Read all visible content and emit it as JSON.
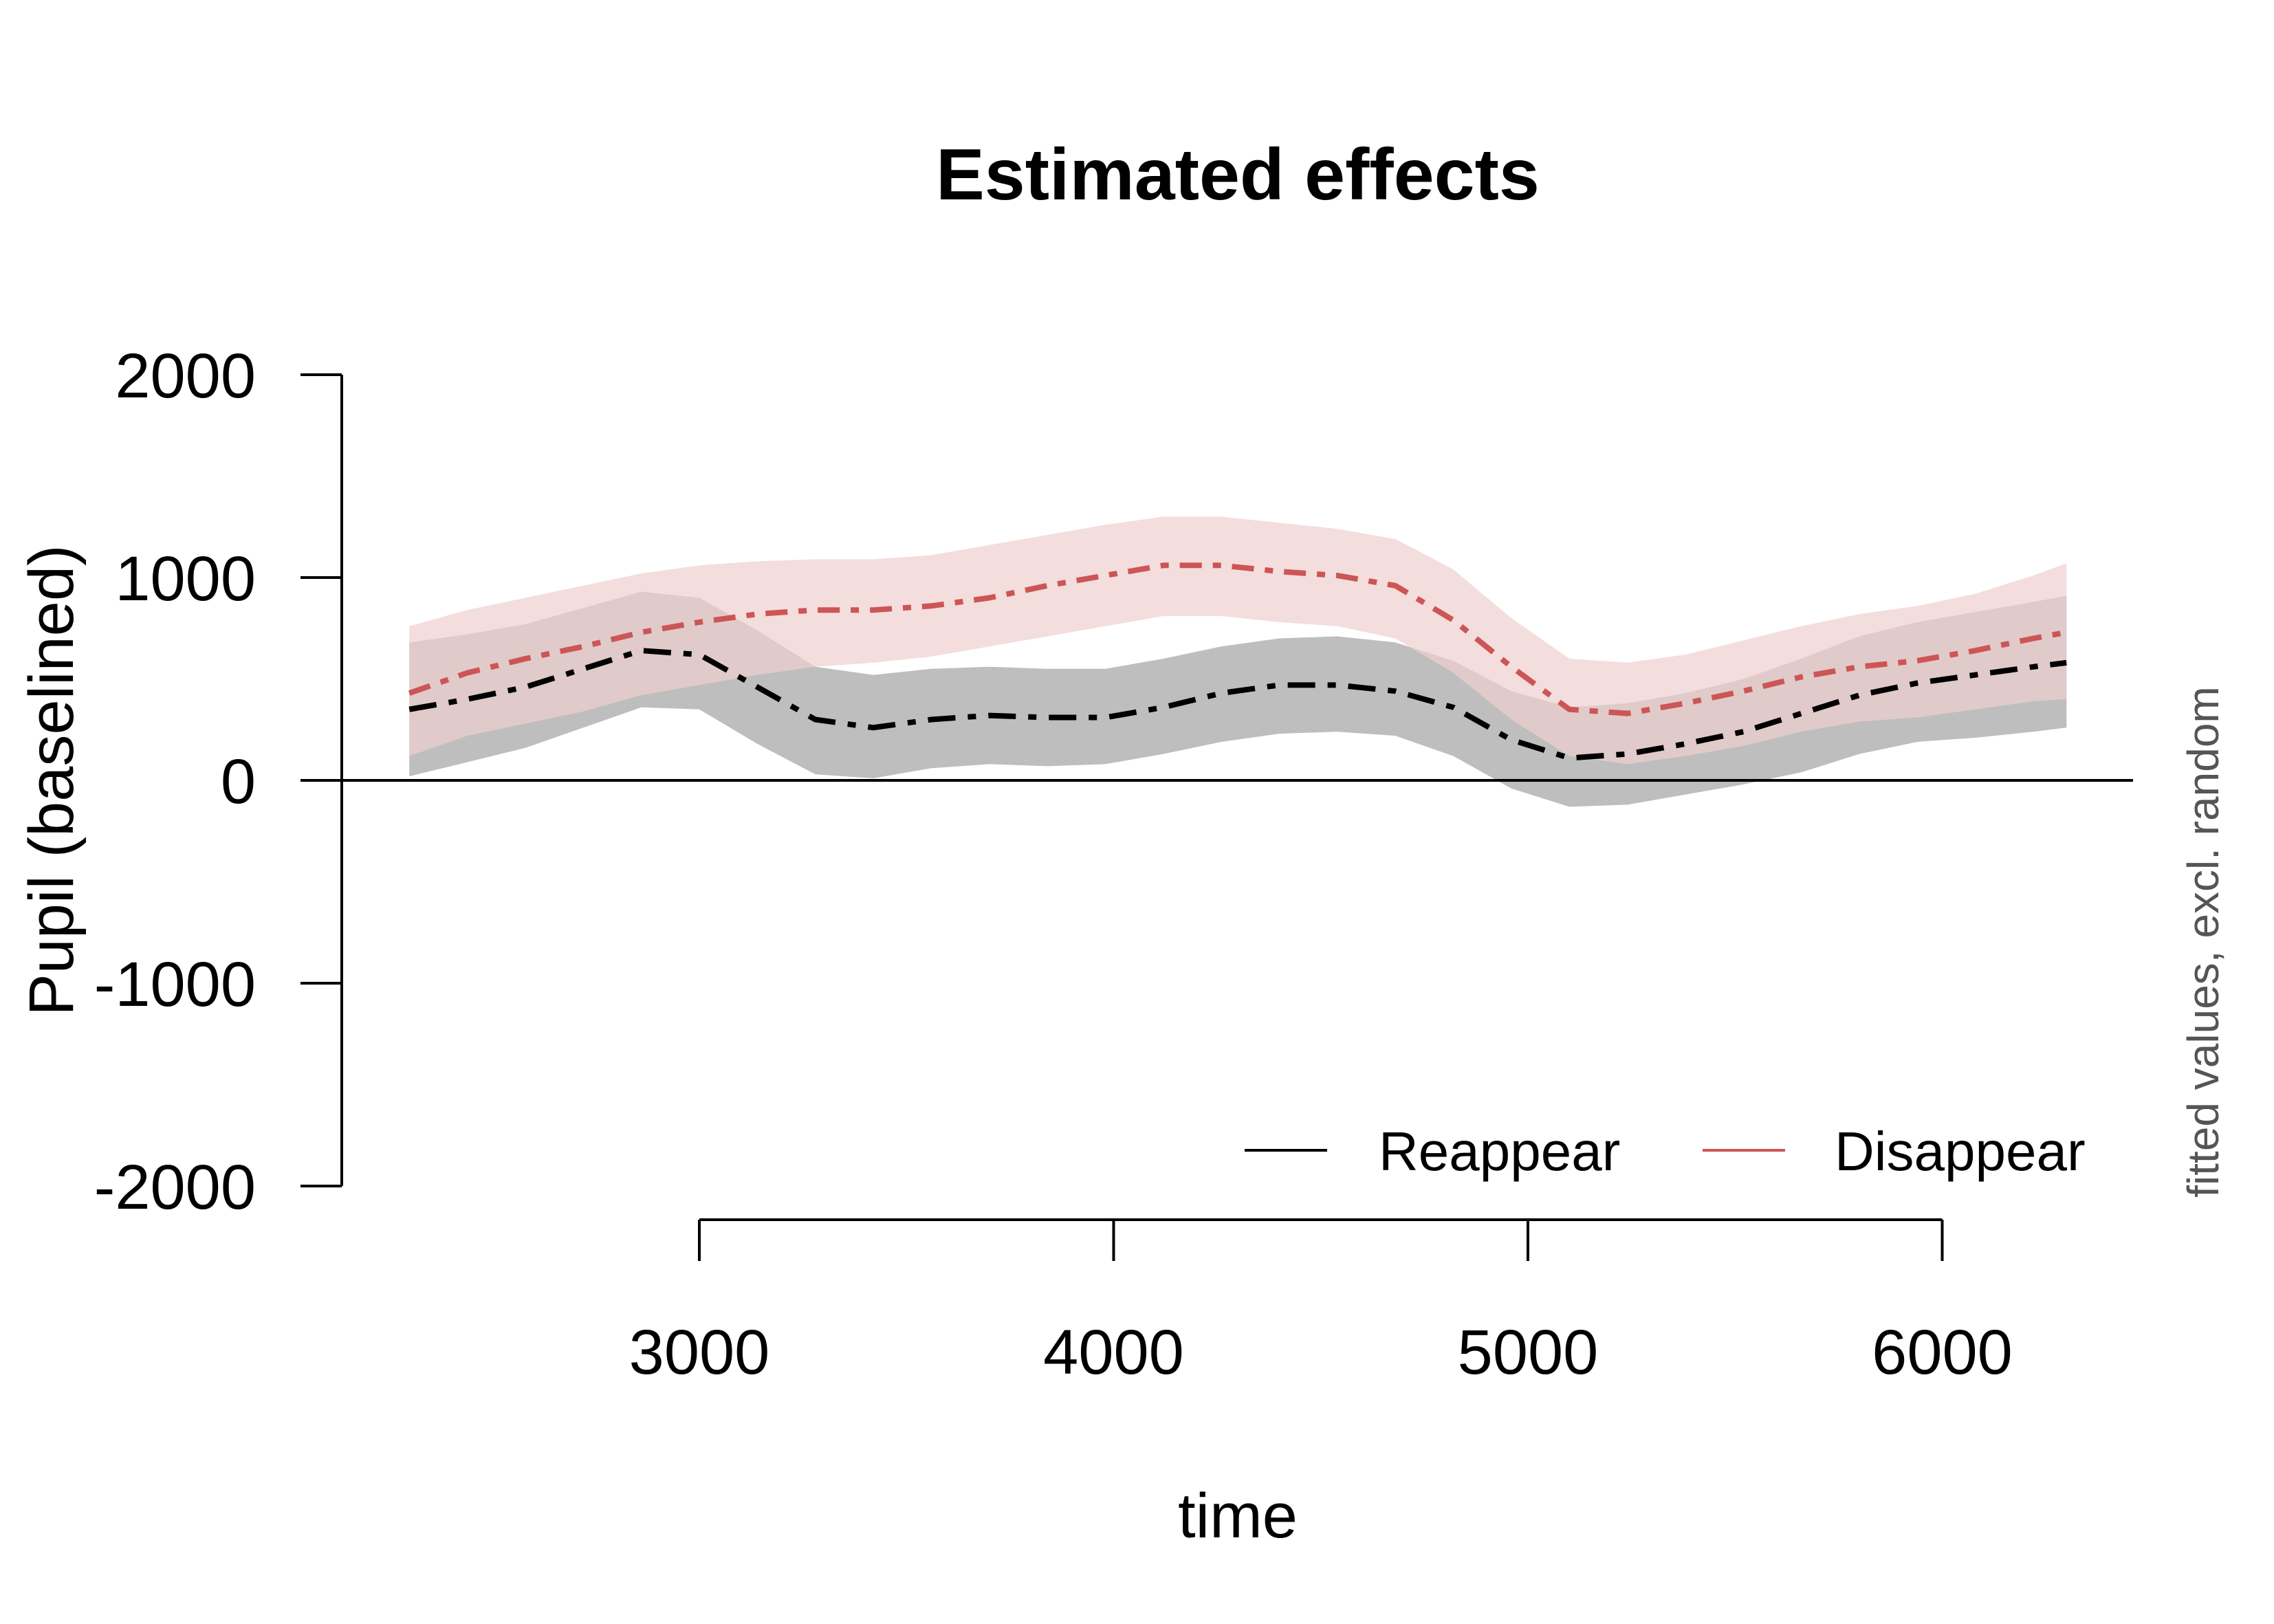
{
  "chart_data": {
    "type": "line",
    "title": "Estimated effects",
    "xlabel": "time",
    "ylabel": "Pupil (baselined)",
    "side_note": "fitted values, excl. random",
    "xlim": [
      2100,
      6450
    ],
    "ylim": [
      -2000,
      2000
    ],
    "xticks": [
      3000,
      4000,
      5000,
      6000
    ],
    "xtick_labels": [
      "3000",
      "4000",
      "5000",
      "6000"
    ],
    "yticks": [
      2000,
      1000,
      0,
      -1000,
      -2000
    ],
    "ytick_labels": [
      "2000",
      "1000",
      "0",
      "-1000",
      "-2000"
    ],
    "zero_line": 0,
    "grid": false,
    "legend_position": "bottom-right",
    "x": [
      2300,
      2440,
      2580,
      2720,
      2860,
      3000,
      3140,
      3280,
      3420,
      3560,
      3700,
      3840,
      3980,
      4120,
      4260,
      4400,
      4540,
      4680,
      4820,
      4960,
      5100,
      5240,
      5380,
      5520,
      5660,
      5800,
      5940,
      6080,
      6220,
      6300
    ],
    "series": [
      {
        "name": "Reappear",
        "color": "#000000",
        "band_color": "#bebebe",
        "values": [
          350,
          400,
          460,
          550,
          640,
          620,
          460,
          300,
          260,
          300,
          320,
          310,
          310,
          360,
          430,
          470,
          470,
          440,
          360,
          200,
          110,
          130,
          180,
          240,
          330,
          420,
          480,
          520,
          560,
          580
        ],
        "lower": [
          20,
          90,
          160,
          260,
          360,
          350,
          180,
          30,
          10,
          60,
          80,
          70,
          80,
          130,
          190,
          230,
          240,
          220,
          120,
          -40,
          -130,
          -120,
          -70,
          -20,
          40,
          130,
          190,
          210,
          240,
          260
        ],
        "upper": [
          680,
          720,
          770,
          850,
          930,
          900,
          740,
          560,
          520,
          550,
          560,
          550,
          550,
          600,
          660,
          700,
          710,
          680,
          590,
          440,
          360,
          380,
          430,
          500,
          600,
          710,
          780,
          830,
          880,
          910
        ]
      },
      {
        "name": "Disappear",
        "color": "#cd5555",
        "band_color": "#f0cfcf",
        "values": [
          430,
          530,
          600,
          660,
          730,
          780,
          820,
          840,
          840,
          860,
          900,
          960,
          1010,
          1060,
          1060,
          1030,
          1010,
          960,
          790,
          560,
          350,
          330,
          380,
          440,
          510,
          560,
          590,
          640,
          700,
          730
        ],
        "lower": [
          120,
          220,
          280,
          340,
          420,
          470,
          520,
          560,
          580,
          610,
          660,
          710,
          760,
          810,
          810,
          780,
          760,
          700,
          530,
          300,
          120,
          80,
          120,
          170,
          240,
          290,
          310,
          350,
          390,
          400
        ],
        "upper": [
          760,
          840,
          900,
          960,
          1020,
          1060,
          1080,
          1090,
          1090,
          1110,
          1160,
          1210,
          1260,
          1300,
          1300,
          1270,
          1240,
          1190,
          1040,
          800,
          600,
          580,
          620,
          690,
          760,
          820,
          860,
          920,
          1010,
          1070
        ]
      }
    ]
  }
}
